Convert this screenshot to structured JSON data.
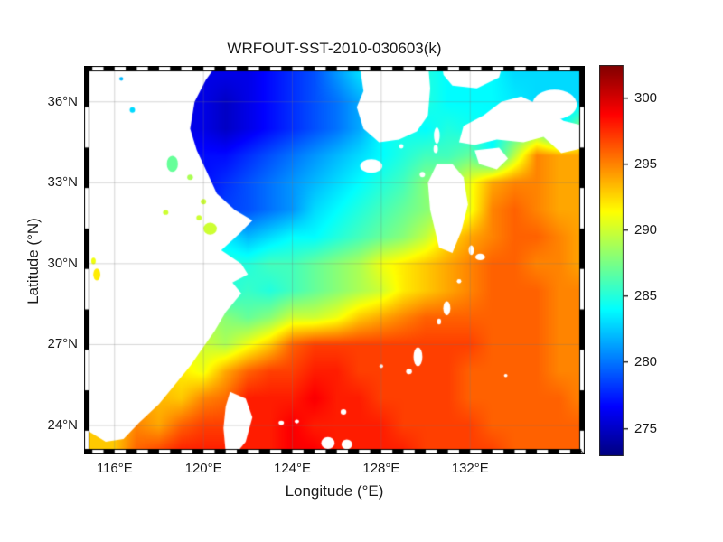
{
  "title": "WRFOUT-SST-2010-030603(k)",
  "axes": {
    "xlabel": "Longitude (°E)",
    "ylabel": "Latitude (°N)",
    "xticks": [
      "116°E",
      "120°E",
      "124°E",
      "128°E",
      "132°E"
    ],
    "yticks": [
      "36°N",
      "33°N",
      "30°N",
      "27°N",
      "24°N"
    ]
  },
  "colorbar": {
    "ticks": [
      "300",
      "295",
      "290",
      "285",
      "280",
      "275"
    ],
    "tick_values": [
      300,
      295,
      290,
      285,
      280,
      275
    ],
    "min": 273,
    "max": 302.5,
    "colormap": "jet",
    "units": "K"
  },
  "chart_data": {
    "type": "heatmap",
    "title": "WRFOUT-SST-2010-030603(k)",
    "xlabel": "Longitude (°E)",
    "ylabel": "Latitude (°N)",
    "xlim": [
      114.87,
      136.91
    ],
    "ylim": [
      23.13,
      37.13
    ],
    "xtick_lons": [
      116,
      120,
      124,
      128,
      132
    ],
    "ytick_lats": [
      36,
      33,
      30,
      27,
      24
    ],
    "grid": true,
    "land_color": "#ffffff",
    "x_lon": [
      115,
      116,
      117,
      118,
      119,
      120,
      121,
      122,
      123,
      124,
      125,
      126,
      127,
      128,
      129,
      130,
      131,
      132,
      133,
      134,
      135,
      136,
      137
    ],
    "y_lat": [
      37,
      36,
      35,
      34,
      33,
      32,
      31,
      30,
      29,
      28,
      27,
      26,
      25,
      24,
      23
    ],
    "sst_kelvin": [
      [
        null,
        null,
        null,
        null,
        null,
        null,
        276,
        276,
        277,
        278,
        279,
        281,
        283,
        null,
        null,
        285,
        284,
        null,
        284,
        283,
        283,
        283,
        283
      ],
      [
        null,
        null,
        null,
        null,
        null,
        276,
        275,
        276,
        277,
        278,
        279,
        280,
        null,
        null,
        null,
        285,
        284,
        284,
        284,
        null,
        null,
        283,
        283
      ],
      [
        null,
        null,
        null,
        null,
        null,
        276,
        275,
        276,
        277,
        278,
        279,
        280,
        null,
        null,
        null,
        284,
        285,
        null,
        null,
        null,
        null,
        null,
        null
      ],
      [
        null,
        null,
        null,
        null,
        null,
        277,
        277,
        278,
        279,
        280,
        281,
        282,
        283,
        284,
        285,
        286,
        286,
        null,
        284,
        null,
        null,
        null,
        294
      ],
      [
        null,
        null,
        null,
        null,
        null,
        277,
        278,
        279,
        280,
        281,
        282,
        283,
        null,
        285,
        286,
        288,
        null,
        291,
        294,
        295,
        295,
        294,
        294
      ],
      [
        null,
        null,
        null,
        null,
        null,
        null,
        null,
        279,
        280,
        281,
        283,
        284,
        285,
        286,
        287,
        288,
        289,
        291,
        295,
        296,
        295,
        294,
        294
      ],
      [
        null,
        null,
        null,
        null,
        null,
        null,
        null,
        282,
        283,
        284,
        284,
        285,
        286,
        287,
        288,
        null,
        null,
        294,
        295,
        296,
        296,
        295,
        294
      ],
      [
        null,
        null,
        null,
        null,
        null,
        null,
        285,
        285,
        286,
        286,
        287,
        288,
        289,
        291,
        292,
        293,
        294,
        295,
        296,
        296,
        295,
        295,
        294
      ],
      [
        null,
        null,
        null,
        null,
        null,
        null,
        null,
        null,
        285,
        286,
        287,
        288,
        289,
        290,
        292,
        293,
        294,
        295,
        296,
        296,
        296,
        295,
        295
      ],
      [
        null,
        null,
        null,
        null,
        null,
        null,
        null,
        287,
        288,
        290,
        290,
        291,
        293,
        294,
        295,
        296,
        296,
        296,
        296,
        296,
        296,
        295,
        295
      ],
      [
        null,
        null,
        null,
        null,
        null,
        null,
        289,
        291,
        293,
        296,
        297,
        297,
        297,
        297,
        297,
        297,
        297,
        297,
        296,
        296,
        296,
        295,
        295
      ],
      [
        null,
        null,
        null,
        null,
        null,
        291,
        294,
        296,
        297,
        297,
        298,
        298,
        297,
        297,
        null,
        297,
        297,
        296,
        296,
        296,
        296,
        295,
        295
      ],
      [
        null,
        null,
        null,
        null,
        293,
        295,
        null,
        298,
        298,
        298,
        299,
        298,
        298,
        297,
        297,
        297,
        297,
        296,
        296,
        296,
        296,
        296,
        295
      ],
      [
        null,
        null,
        null,
        294,
        296,
        297,
        null,
        null,
        298,
        299,
        298,
        298,
        298,
        298,
        297,
        297,
        297,
        297,
        296,
        296,
        296,
        296,
        296
      ],
      [
        null,
        293,
        296,
        297,
        298,
        298,
        null,
        298,
        298,
        299,
        299,
        298,
        298,
        298,
        298,
        297,
        297,
        297,
        297,
        296,
        296,
        296,
        296
      ]
    ],
    "land_polygons_lonlat": {
      "china": [
        [
          114.8,
          37.5
        ],
        [
          120.7,
          37.5
        ],
        [
          120.1,
          36.8
        ],
        [
          119.6,
          36.0
        ],
        [
          119.4,
          35.0
        ],
        [
          119.7,
          34.2
        ],
        [
          120.1,
          33.5
        ],
        [
          120.6,
          32.6
        ],
        [
          121.4,
          32.0
        ],
        [
          122.2,
          31.6
        ],
        [
          121.6,
          31.1
        ],
        [
          120.8,
          30.5
        ],
        [
          121.7,
          30.0
        ],
        [
          122.0,
          29.6
        ],
        [
          121.3,
          29.3
        ],
        [
          121.7,
          28.9
        ],
        [
          121.0,
          28.2
        ],
        [
          120.5,
          27.5
        ],
        [
          119.9,
          26.8
        ],
        [
          119.4,
          26.2
        ],
        [
          118.7,
          25.5
        ],
        [
          118.0,
          24.8
        ],
        [
          117.1,
          24.1
        ],
        [
          116.4,
          23.5
        ],
        [
          115.6,
          23.4
        ],
        [
          114.8,
          23.8
        ]
      ],
      "korea": [
        [
          127.0,
          37.5
        ],
        [
          127.2,
          36.4
        ],
        [
          126.9,
          35.8
        ],
        [
          127.2,
          35.0
        ],
        [
          127.9,
          34.5
        ],
        [
          128.8,
          34.6
        ],
        [
          129.6,
          34.9
        ],
        [
          130.1,
          35.5
        ],
        [
          130.2,
          36.5
        ],
        [
          130.1,
          37.5
        ]
      ],
      "kyushu": [
        [
          130.5,
          33.7
        ],
        [
          130.1,
          33.0
        ],
        [
          130.2,
          32.0
        ],
        [
          130.6,
          30.6
        ],
        [
          131.2,
          30.4
        ],
        [
          131.6,
          31.2
        ],
        [
          131.9,
          32.2
        ],
        [
          131.7,
          33.2
        ],
        [
          131.2,
          33.7
        ]
      ],
      "shikoku": [
        [
          132.2,
          34.2
        ],
        [
          133.3,
          34.3
        ],
        [
          133.7,
          33.9
        ],
        [
          133.2,
          33.5
        ],
        [
          132.4,
          33.7
        ]
      ],
      "honshu": [
        [
          131.5,
          34.5
        ],
        [
          131.7,
          35.1
        ],
        [
          132.6,
          35.5
        ],
        [
          133.4,
          36.0
        ],
        [
          134.3,
          36.2
        ],
        [
          135.3,
          35.8
        ],
        [
          136.2,
          35.3
        ],
        [
          137.2,
          35.1
        ],
        [
          137.2,
          34.3
        ],
        [
          136.1,
          34.1
        ],
        [
          135.3,
          34.7
        ],
        [
          134.4,
          34.5
        ],
        [
          133.2,
          34.6
        ],
        [
          132.2,
          34.4
        ]
      ],
      "taiwan": [
        [
          121.2,
          25.25
        ],
        [
          121.9,
          25.0
        ],
        [
          122.2,
          24.3
        ],
        [
          121.9,
          23.4
        ],
        [
          121.5,
          23.0
        ],
        [
          121.0,
          23.0
        ],
        [
          120.9,
          23.9
        ],
        [
          121.0,
          24.7
        ]
      ],
      "patch_ne": [
        [
          130.7,
          37.5
        ],
        [
          133.5,
          37.5
        ],
        [
          133.3,
          36.9
        ],
        [
          132.3,
          36.5
        ],
        [
          131.2,
          36.6
        ],
        [
          130.8,
          37.0
        ]
      ]
    },
    "island_spots_lonlat_rxry": [
      [
        127.55,
        33.62,
        0.5,
        0.25
      ],
      [
        130.5,
        34.75,
        0.13,
        0.3
      ],
      [
        130.45,
        34.25,
        0.1,
        0.15
      ],
      [
        129.85,
        33.3,
        0.12,
        0.1
      ],
      [
        128.9,
        34.35,
        0.1,
        0.08
      ],
      [
        132.45,
        30.25,
        0.22,
        0.12
      ],
      [
        132.05,
        30.5,
        0.12,
        0.18
      ],
      [
        131.5,
        29.35,
        0.1,
        0.08
      ],
      [
        130.95,
        28.35,
        0.16,
        0.26
      ],
      [
        130.6,
        27.85,
        0.09,
        0.11
      ],
      [
        129.65,
        26.55,
        0.2,
        0.35
      ],
      [
        129.25,
        26.0,
        0.13,
        0.1
      ],
      [
        128.0,
        26.2,
        0.08,
        0.07
      ],
      [
        126.3,
        24.5,
        0.13,
        0.1
      ],
      [
        125.6,
        23.35,
        0.3,
        0.22
      ],
      [
        126.45,
        23.3,
        0.24,
        0.18
      ],
      [
        123.5,
        24.1,
        0.12,
        0.08
      ],
      [
        124.2,
        24.15,
        0.1,
        0.07
      ],
      [
        133.6,
        25.85,
        0.08,
        0.06
      ],
      [
        135.8,
        35.9,
        1.0,
        0.55
      ]
    ],
    "lake_spots_lonlat_rxry_tempk": [
      [
        118.6,
        33.7,
        0.25,
        0.3,
        287
      ],
      [
        119.4,
        33.2,
        0.13,
        0.1,
        289
      ],
      [
        120.0,
        32.3,
        0.12,
        0.1,
        290
      ],
      [
        120.3,
        31.3,
        0.3,
        0.22,
        290
      ],
      [
        119.8,
        31.7,
        0.12,
        0.1,
        290
      ],
      [
        118.3,
        31.9,
        0.12,
        0.09,
        290
      ],
      [
        115.2,
        29.6,
        0.16,
        0.22,
        292
      ],
      [
        115.05,
        30.1,
        0.1,
        0.12,
        291
      ],
      [
        116.8,
        35.7,
        0.12,
        0.1,
        283
      ],
      [
        116.3,
        36.85,
        0.09,
        0.07,
        282
      ]
    ]
  }
}
